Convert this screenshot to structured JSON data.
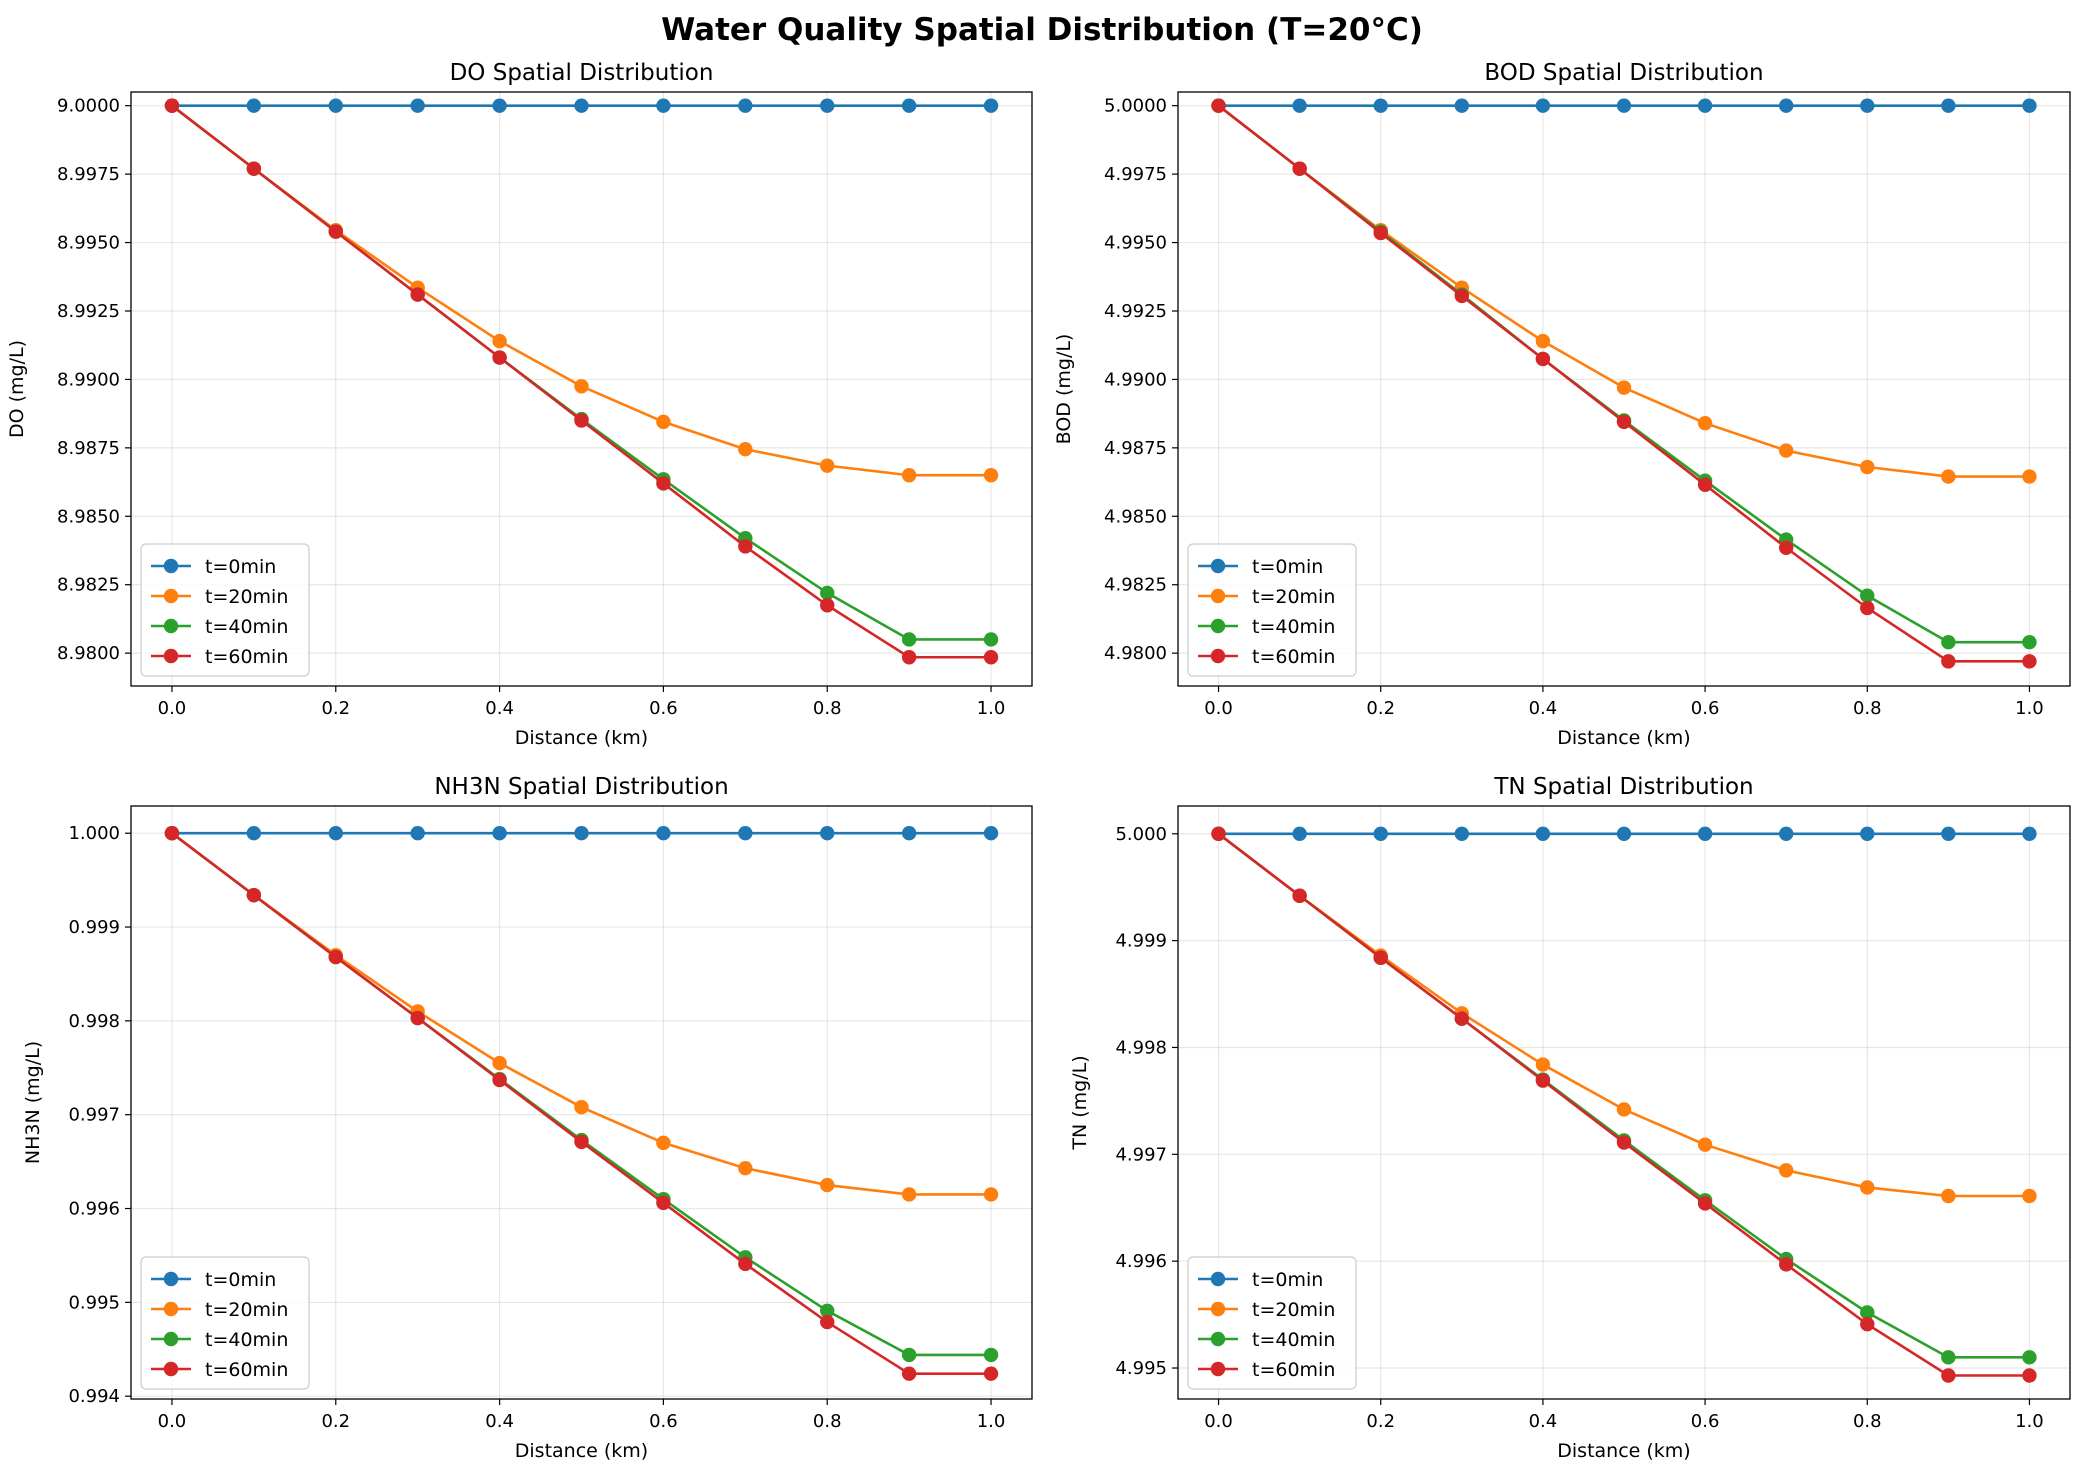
{
  "figure": {
    "title": "Water Quality Spatial Distribution (T=20°C)"
  },
  "chart_data": [
    {
      "type": "line",
      "title": "DO Spatial Distribution",
      "xlabel": "Distance (km)",
      "ylabel": "DO (mg/L)",
      "xlim": [
        -0.05,
        1.05
      ],
      "ylim": [
        8.9788,
        9.0005
      ],
      "xticks": [
        "0.0",
        "0.2",
        "0.4",
        "0.6",
        "0.8",
        "1.0"
      ],
      "xtick_values": [
        0.0,
        0.2,
        0.4,
        0.6,
        0.8,
        1.0
      ],
      "yticks": [
        "8.9800",
        "8.9825",
        "8.9850",
        "8.9875",
        "8.9900",
        "8.9925",
        "8.9950",
        "8.9975",
        "9.0000"
      ],
      "ytick_values": [
        8.98,
        8.9825,
        8.985,
        8.9875,
        8.99,
        8.9925,
        8.995,
        8.9975,
        9.0
      ],
      "grid": true,
      "legend": "lower-left",
      "x": [
        0.0,
        0.1,
        0.2,
        0.3,
        0.4,
        0.5,
        0.6,
        0.7,
        0.8,
        0.9,
        1.0
      ],
      "series": [
        {
          "name": "t=0min",
          "color": "#1f77b4",
          "values": [
            9.0,
            9.0,
            9.0,
            9.0,
            9.0,
            9.0,
            9.0,
            9.0,
            9.0,
            9.0,
            9.0
          ]
        },
        {
          "name": "t=20min",
          "color": "#ff7f0e",
          "values": [
            9.0,
            8.9977,
            8.99545,
            8.99335,
            8.9914,
            8.98975,
            8.98845,
            8.98745,
            8.98685,
            8.9865,
            8.9865
          ]
        },
        {
          "name": "t=40min",
          "color": "#2ca02c",
          "values": [
            9.0,
            8.9977,
            8.9954,
            8.9931,
            8.9908,
            8.98855,
            8.98635,
            8.9842,
            8.9822,
            8.9805,
            8.9805
          ]
        },
        {
          "name": "t=60min",
          "color": "#d62728",
          "values": [
            9.0,
            8.9977,
            8.9954,
            8.9931,
            8.9908,
            8.9885,
            8.9862,
            8.9839,
            8.98175,
            8.97985,
            8.97985
          ]
        }
      ]
    },
    {
      "type": "line",
      "title": "BOD Spatial Distribution",
      "xlabel": "Distance (km)",
      "ylabel": "BOD (mg/L)",
      "xlim": [
        -0.05,
        1.05
      ],
      "ylim": [
        4.9788,
        5.0005
      ],
      "xticks": [
        "0.0",
        "0.2",
        "0.4",
        "0.6",
        "0.8",
        "1.0"
      ],
      "xtick_values": [
        0.0,
        0.2,
        0.4,
        0.6,
        0.8,
        1.0
      ],
      "yticks": [
        "4.9800",
        "4.9825",
        "4.9850",
        "4.9875",
        "4.9900",
        "4.9925",
        "4.9950",
        "4.9975",
        "5.0000"
      ],
      "ytick_values": [
        4.98,
        4.9825,
        4.985,
        4.9875,
        4.99,
        4.9925,
        4.995,
        4.9975,
        5.0
      ],
      "grid": true,
      "legend": "lower-left",
      "x": [
        0.0,
        0.1,
        0.2,
        0.3,
        0.4,
        0.5,
        0.6,
        0.7,
        0.8,
        0.9,
        1.0
      ],
      "series": [
        {
          "name": "t=0min",
          "color": "#1f77b4",
          "values": [
            5.0,
            5.0,
            5.0,
            5.0,
            5.0,
            5.0,
            5.0,
            5.0,
            5.0,
            5.0,
            5.0
          ]
        },
        {
          "name": "t=20min",
          "color": "#ff7f0e",
          "values": [
            5.0,
            4.9977,
            4.99545,
            4.99335,
            4.9914,
            4.9897,
            4.9884,
            4.9874,
            4.9868,
            4.98645,
            4.98645
          ]
        },
        {
          "name": "t=40min",
          "color": "#2ca02c",
          "values": [
            5.0,
            4.9977,
            4.9954,
            4.9931,
            4.99075,
            4.9885,
            4.9863,
            4.98415,
            4.9821,
            4.9804,
            4.9804
          ]
        },
        {
          "name": "t=60min",
          "color": "#d62728",
          "values": [
            5.0,
            4.9977,
            4.99535,
            4.99305,
            4.99075,
            4.98845,
            4.98615,
            4.98385,
            4.98165,
            4.9797,
            4.9797
          ]
        }
      ]
    },
    {
      "type": "line",
      "title": "NH3N Spatial Distribution",
      "xlabel": "Distance (km)",
      "ylabel": "NH3N (mg/L)",
      "xlim": [
        -0.05,
        1.05
      ],
      "ylim": [
        0.99397,
        1.00029
      ],
      "xticks": [
        "0.0",
        "0.2",
        "0.4",
        "0.6",
        "0.8",
        "1.0"
      ],
      "xtick_values": [
        0.0,
        0.2,
        0.4,
        0.6,
        0.8,
        1.0
      ],
      "yticks": [
        "0.994",
        "0.995",
        "0.996",
        "0.997",
        "0.998",
        "0.999",
        "1.000"
      ],
      "ytick_values": [
        0.994,
        0.995,
        0.996,
        0.997,
        0.998,
        0.999,
        1.0
      ],
      "grid": true,
      "legend": "lower-left",
      "x": [
        0.0,
        0.1,
        0.2,
        0.3,
        0.4,
        0.5,
        0.6,
        0.7,
        0.8,
        0.9,
        1.0
      ],
      "series": [
        {
          "name": "t=0min",
          "color": "#1f77b4",
          "values": [
            1.0,
            1.0,
            1.0,
            1.0,
            1.0,
            1.0,
            1.0,
            1.0,
            1.0,
            1.0,
            1.0
          ]
        },
        {
          "name": "t=20min",
          "color": "#ff7f0e",
          "values": [
            1.0,
            0.99934,
            0.9987,
            0.9981,
            0.99755,
            0.99708,
            0.9967,
            0.99643,
            0.99625,
            0.99615,
            0.99615
          ]
        },
        {
          "name": "t=40min",
          "color": "#2ca02c",
          "values": [
            1.0,
            0.99934,
            0.99868,
            0.99803,
            0.99738,
            0.99673,
            0.9961,
            0.99548,
            0.99491,
            0.99444,
            0.99444
          ]
        },
        {
          "name": "t=60min",
          "color": "#d62728",
          "values": [
            1.0,
            0.99934,
            0.99868,
            0.99803,
            0.99737,
            0.99671,
            0.99606,
            0.99541,
            0.99479,
            0.99424,
            0.99424
          ]
        }
      ]
    },
    {
      "type": "line",
      "title": "TN Spatial Distribution",
      "xlabel": "Distance (km)",
      "ylabel": "TN (mg/L)",
      "xlim": [
        -0.05,
        1.05
      ],
      "ylim": [
        4.99471,
        5.00026
      ],
      "xticks": [
        "0.0",
        "0.2",
        "0.4",
        "0.6",
        "0.8",
        "1.0"
      ],
      "xtick_values": [
        0.0,
        0.2,
        0.4,
        0.6,
        0.8,
        1.0
      ],
      "yticks": [
        "4.995",
        "4.996",
        "4.997",
        "4.998",
        "4.999",
        "5.000"
      ],
      "ytick_values": [
        4.995,
        4.996,
        4.997,
        4.998,
        4.999,
        5.0
      ],
      "grid": true,
      "legend": "lower-left",
      "x": [
        0.0,
        0.1,
        0.2,
        0.3,
        0.4,
        0.5,
        0.6,
        0.7,
        0.8,
        0.9,
        1.0
      ],
      "series": [
        {
          "name": "t=0min",
          "color": "#1f77b4",
          "values": [
            5.0,
            5.0,
            5.0,
            5.0,
            5.0,
            5.0,
            5.0,
            5.0,
            5.0,
            5.0,
            5.0
          ]
        },
        {
          "name": "t=20min",
          "color": "#ff7f0e",
          "values": [
            5.0,
            4.99942,
            4.99886,
            4.99832,
            4.99784,
            4.99742,
            4.99709,
            4.99685,
            4.99669,
            4.99661,
            4.99661
          ]
        },
        {
          "name": "t=40min",
          "color": "#2ca02c",
          "values": [
            5.0,
            4.99942,
            4.99884,
            4.99827,
            4.9977,
            4.99713,
            4.99657,
            4.99602,
            4.99552,
            4.9951,
            4.9951
          ]
        },
        {
          "name": "t=60min",
          "color": "#d62728",
          "values": [
            5.0,
            4.99942,
            4.99884,
            4.99827,
            4.99769,
            4.99711,
            4.99654,
            4.99597,
            4.99541,
            4.99493,
            4.99493
          ]
        }
      ]
    }
  ]
}
